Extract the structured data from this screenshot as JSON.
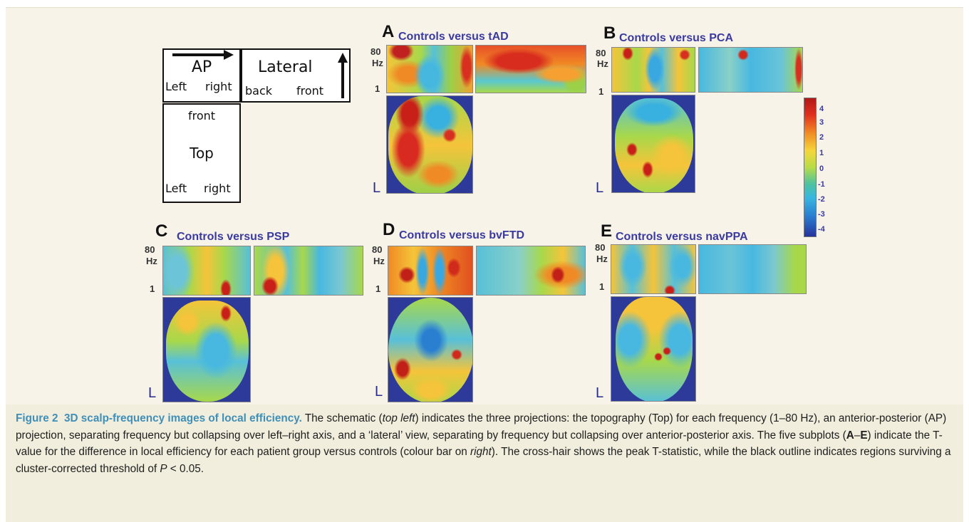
{
  "schematic": {
    "ap_label": "AP",
    "ap_left": "Left",
    "ap_right": "right",
    "lateral_label": "Lateral",
    "lateral_back": "back",
    "lateral_front": "front",
    "top_front": "front",
    "top_label": "Top",
    "top_left": "Left",
    "top_right": "right"
  },
  "panels": [
    {
      "letter": "A",
      "title": "Controls versus tAD",
      "y_top": "80",
      "y_unit": "Hz",
      "y_bottom": "1",
      "side": "L"
    },
    {
      "letter": "B",
      "title": "Controls versus PCA",
      "y_top": "80",
      "y_unit": "Hz",
      "y_bottom": "1",
      "side": "L"
    },
    {
      "letter": "C",
      "title": "Controls versus PSP",
      "y_top": "80",
      "y_unit": "Hz",
      "y_bottom": "1",
      "side": "L"
    },
    {
      "letter": "D",
      "title": "Controls versus bvFTD",
      "y_top": "80",
      "y_unit": "Hz",
      "y_bottom": "1",
      "side": "L"
    },
    {
      "letter": "E",
      "title": "Controls versus navPPA",
      "y_top": "80",
      "y_unit": "Hz",
      "y_bottom": "1",
      "side": "L"
    }
  ],
  "colorbar": {
    "ticks": [
      "4",
      "3",
      "2",
      "1",
      "0",
      "-1",
      "-2",
      "-3",
      "-4"
    ],
    "colors": [
      "#b01818",
      "#e03020",
      "#f08a24",
      "#f5d63c",
      "#b8dc48",
      "#4ec2a0",
      "#39b6e0",
      "#2a7fd0",
      "#27339c"
    ]
  },
  "caption": {
    "label": "Figure 2",
    "title": "3D scalp-frequency images of local efficiency.",
    "text_1": "The schematic (",
    "text_1_em": "top left",
    "text_2": ") indicates the three projections: the topography (Top) for each frequency (1–80 Hz), an anterior-posterior (AP) projection, separating frequency but collapsing over left–right axis, and a ‘lateral’ view, separating by frequency but collapsing over anterior-posterior axis. The five subplots (",
    "text_2_b1": "A",
    "text_2_dash": "–",
    "text_2_b2": "E",
    "text_3": ") indicate the T-value for the difference in local efficiency for each patient group versus controls (colour bar on ",
    "text_3_em": "right",
    "text_4": "). The cross-hair shows the peak T-statistic, while the black outline indicates regions surviving a cluster-corrected threshold of ",
    "text_4_em": "P",
    "text_5": " < 0.05."
  }
}
